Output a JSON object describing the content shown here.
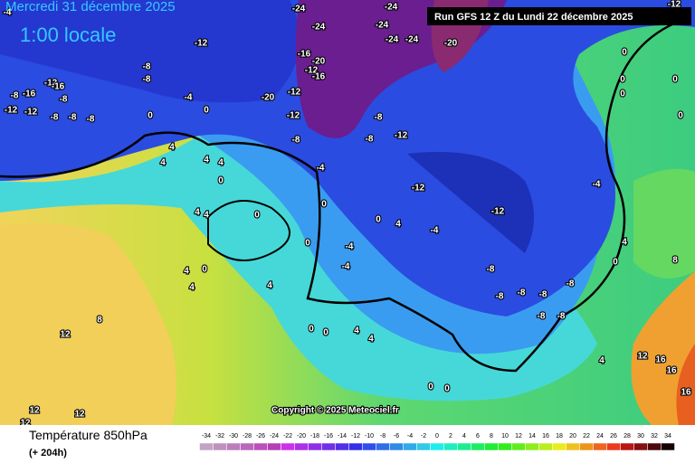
{
  "header": {
    "date": "Mercredi 31 décembre 2025",
    "time": "1:00 locale",
    "run": "Run GFS 12 Z du Lundi 22 décembre 2025"
  },
  "copyright": "Copyright © 2025 Meteociel.fr",
  "legend": {
    "title": "Température 850hPa",
    "lead": "(+ 204h)",
    "scale": [
      -34,
      -32,
      -30,
      -28,
      -26,
      -24,
      -22,
      -20,
      -18,
      -16,
      -14,
      -12,
      -10,
      -8,
      -6,
      -4,
      -2,
      0,
      2,
      4,
      6,
      8,
      10,
      12,
      14,
      16,
      18,
      20,
      22,
      24,
      26,
      28,
      30,
      32,
      34
    ]
  },
  "map_labels": [
    -24,
    -24,
    -24,
    -24,
    -24,
    -24,
    -20,
    -12,
    -16,
    -20,
    -12,
    -16,
    -8,
    -8,
    -12,
    -16,
    -16,
    -8,
    -12,
    -12,
    -8,
    -8,
    -8,
    -8,
    -4,
    0,
    0,
    -20,
    -12,
    -12,
    -8,
    -8,
    -12,
    -8,
    4,
    4,
    4,
    4,
    0,
    -4,
    -12,
    -12,
    -4,
    4,
    4,
    0,
    0,
    0,
    4,
    -4,
    0,
    -4,
    4,
    0,
    4,
    4,
    -4,
    -8,
    -8,
    -8,
    -8,
    -8,
    -8,
    -8,
    4,
    0,
    8,
    0,
    0,
    4,
    4,
    12,
    4,
    12,
    16,
    16,
    16,
    0,
    0,
    12,
    12,
    12,
    0,
    0,
    0,
    0,
    -12,
    0,
    -4,
    8
  ]
}
